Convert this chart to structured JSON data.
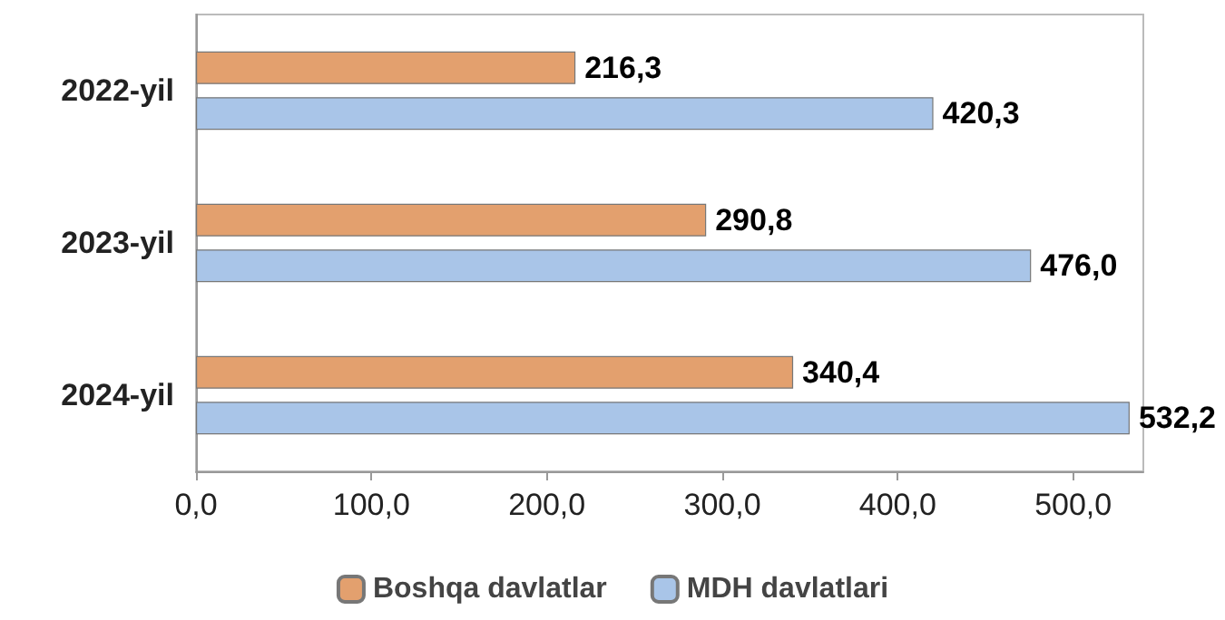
{
  "chart_data": {
    "type": "bar",
    "orientation": "horizontal",
    "categories": [
      "2022-yil",
      "2023-yil",
      "2024-yil"
    ],
    "series": [
      {
        "name": "Boshqa davlatlar",
        "color": "#e3a06e",
        "values": [
          216.3,
          290.8,
          340.4
        ],
        "value_labels": [
          "216,3",
          "290,8",
          "340,4"
        ]
      },
      {
        "name": "MDH davlatlari",
        "color": "#a9c5e8",
        "values": [
          420.3,
          476.0,
          532.2
        ],
        "value_labels": [
          "420,3",
          "476,0",
          "532,2"
        ]
      }
    ],
    "xlim": [
      0,
      540
    ],
    "xticks": [
      {
        "value": 0,
        "label": "0,0"
      },
      {
        "value": 100,
        "label": "100,0"
      },
      {
        "value": 200,
        "label": "200,0"
      },
      {
        "value": 300,
        "label": "300,0"
      },
      {
        "value": 400,
        "label": "400,0"
      },
      {
        "value": 500,
        "label": "500,0"
      }
    ],
    "grid": false,
    "legend": "bottom"
  }
}
